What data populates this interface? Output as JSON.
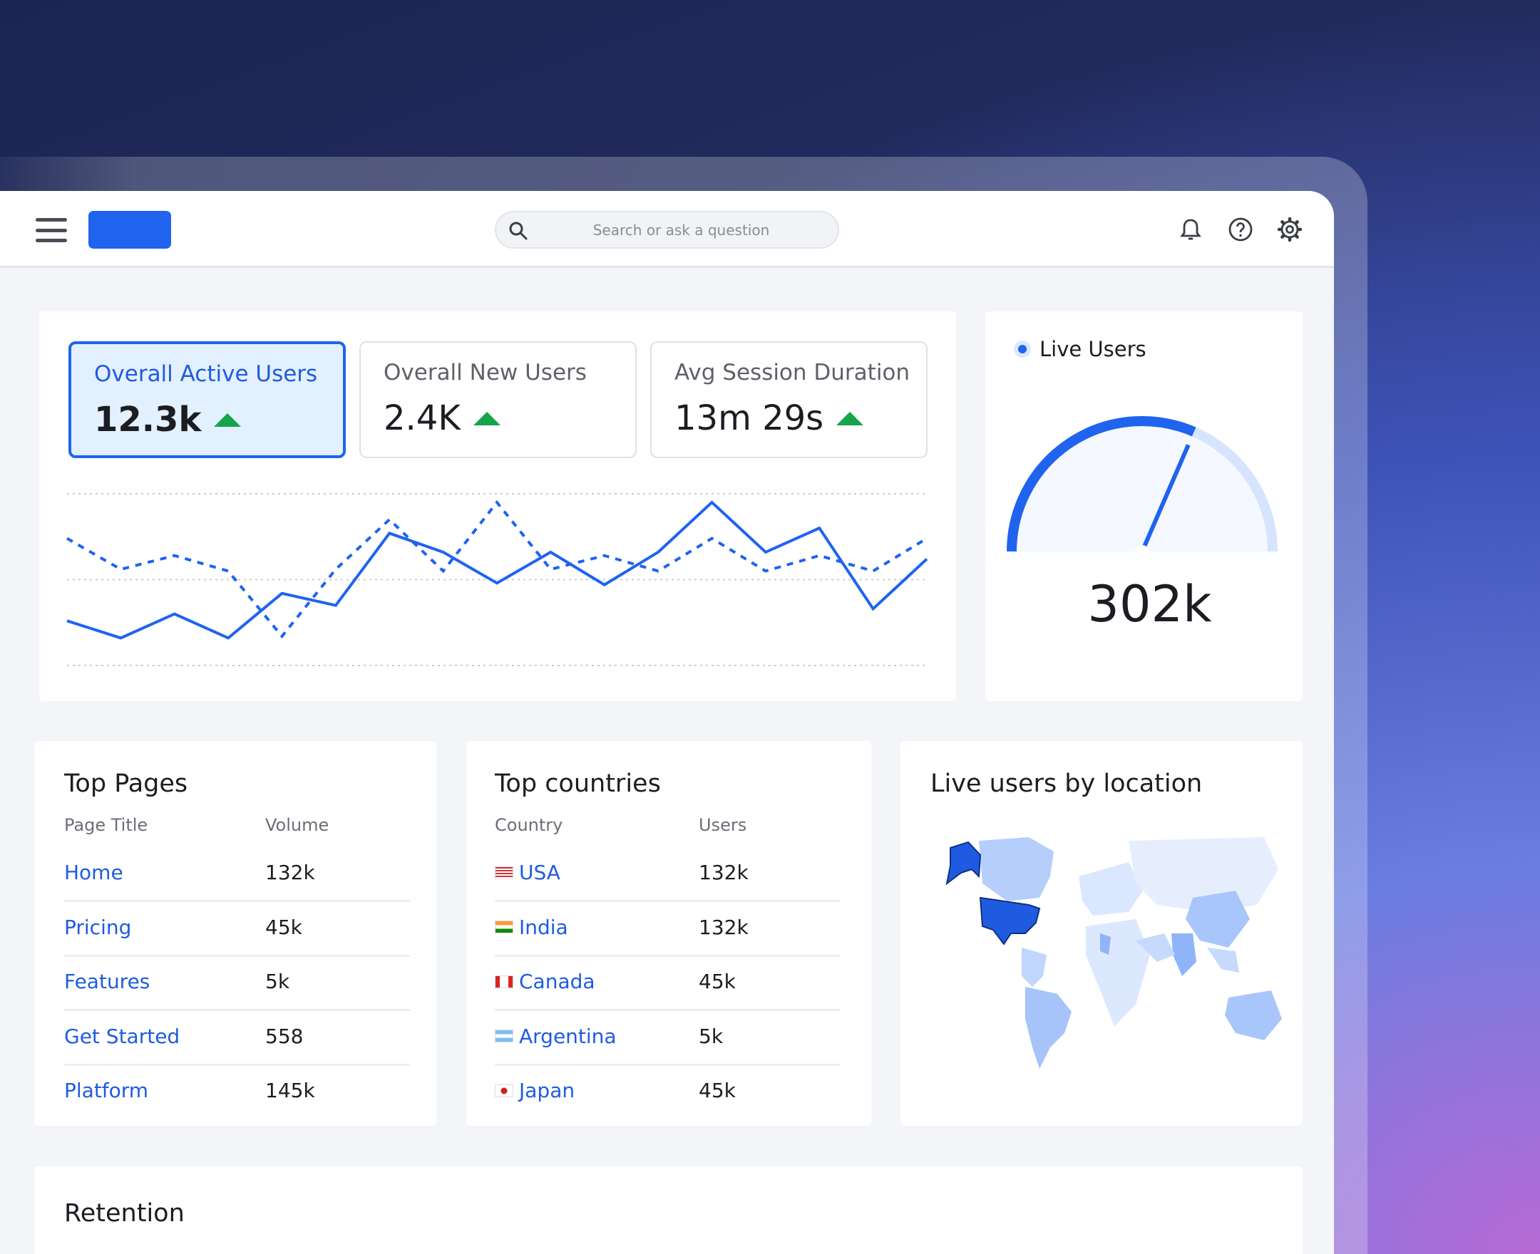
{
  "header": {
    "search_placeholder": "Search or ask a question",
    "icons": [
      "menu-icon",
      "search-icon",
      "bell-icon",
      "help-icon",
      "gear-icon"
    ],
    "brand_color": "#1f63ef"
  },
  "kpis": [
    {
      "title": "Overall Active Users",
      "value": "12.3k",
      "trend": "up",
      "active": true
    },
    {
      "title": "Overall New Users",
      "value": "2.4K",
      "trend": "up",
      "active": false
    },
    {
      "title": "Avg Session Duration",
      "value": "13m 29s",
      "trend": "up",
      "active": false
    }
  ],
  "chart_data": {
    "type": "line",
    "ylim": [
      0,
      100
    ],
    "grid": true,
    "x": [
      1,
      2,
      3,
      4,
      5,
      6,
      7,
      8,
      9,
      10,
      11,
      12,
      13,
      14,
      15,
      16,
      17
    ],
    "series": [
      {
        "style": "solid",
        "color": "#1f63ef",
        "values": [
          26,
          16,
          30,
          16,
          42,
          35,
          77,
          66,
          48,
          66,
          47,
          66,
          95,
          66,
          80,
          33,
          62
        ]
      },
      {
        "style": "dashed",
        "color": "#1f63ef",
        "values": [
          74,
          56,
          64,
          55,
          17,
          56,
          85,
          55,
          95,
          56,
          64,
          55,
          74,
          55,
          64,
          55,
          74
        ]
      }
    ]
  },
  "live": {
    "label": "Live Users",
    "value": "302k",
    "gauge_fraction": 0.63
  },
  "top_pages": {
    "title": "Top Pages",
    "columns": [
      "Page Title",
      "Volume"
    ],
    "rows": [
      [
        "Home",
        "132k"
      ],
      [
        "Pricing",
        "45k"
      ],
      [
        "Features",
        "5k"
      ],
      [
        "Get Started",
        "558"
      ],
      [
        "Platform",
        "145k"
      ]
    ]
  },
  "top_countries": {
    "title": "Top countries",
    "columns": [
      "Country",
      "Users"
    ],
    "rows": [
      [
        "USA",
        "132k"
      ],
      [
        "India",
        "132k"
      ],
      [
        "Canada",
        "45k"
      ],
      [
        "Argentina",
        "5k"
      ],
      [
        "Japan",
        "45k"
      ]
    ]
  },
  "map": {
    "title": "Live users by location",
    "highlight": "USA"
  },
  "retention": {
    "title": "Retention"
  }
}
